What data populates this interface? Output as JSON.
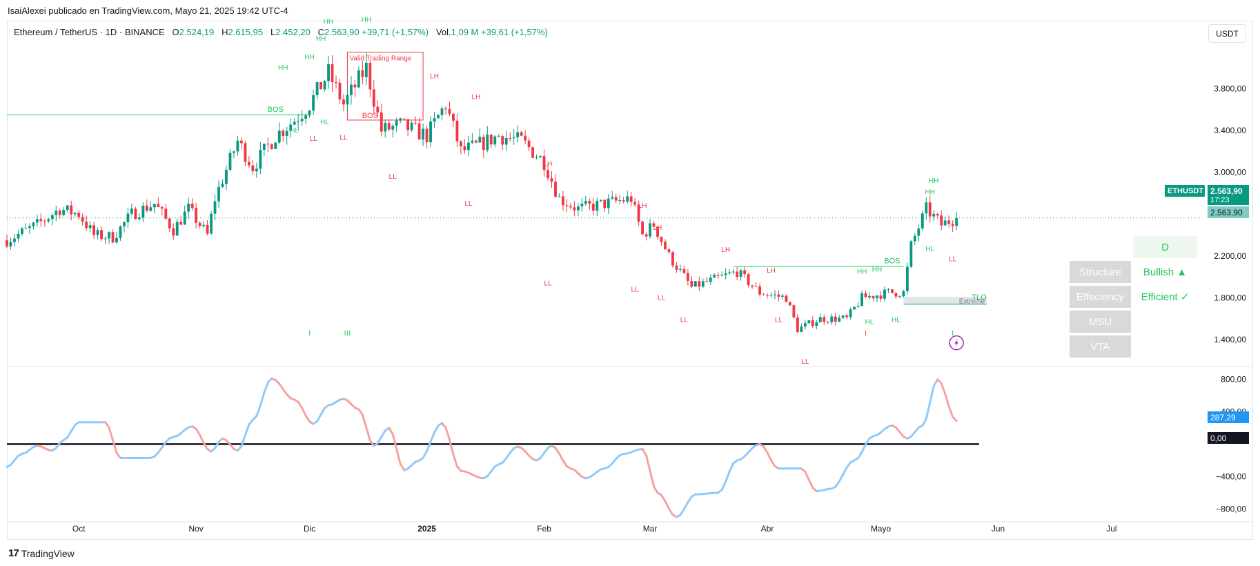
{
  "header": {
    "published": "IsaiAlexei publicado en TradingView.com, Mayo 21, 2025 19:42 UTC-4"
  },
  "legend": {
    "symbol": "Ethereum / TetherUS · 1D · BINANCE",
    "o_label": "O",
    "o": "2.524,19",
    "h_label": "H",
    "h": "2.615,95",
    "l_label": "L",
    "l": "2.452,20",
    "c_label": "C",
    "c": "2.563,90",
    "change": "+39,71 (+1,57%)",
    "vol_label": "Vol.",
    "vol": "1,09 M",
    "vol_change": "+39,61 (+1,57%)"
  },
  "currency": "USDT",
  "price_tags": {
    "symbol": "ETHUSDT",
    "price": "2.563,90",
    "countdown": "17:23",
    "price2": "2.563,90",
    "osc_value": "287,29",
    "osc_zero": "0,00"
  },
  "structure_table": {
    "timeframe": "D",
    "rows": [
      {
        "label": "Structure",
        "value": "Bullish ▲"
      },
      {
        "label": "Effeciency",
        "value": "Efficient ✓"
      },
      {
        "label": "MSU",
        "value": ""
      },
      {
        "label": "VTA",
        "value": ""
      }
    ]
  },
  "footer": {
    "brand": "TradingView",
    "mark": "17"
  },
  "colors": {
    "up": "#089981",
    "down": "#f23645",
    "osc_up": "#90caf9",
    "osc_down": "#f7a1a1",
    "label_green": "#22c55e"
  },
  "chart_data": [
    {
      "type": "candlestick",
      "title": "Ethereum / TetherUS · 1D · BINANCE",
      "x_ticks": [
        "Oct",
        "Nov",
        "Dic",
        "2025",
        "Feb",
        "Mar",
        "Abr",
        "Mayo",
        "Jun",
        "Jul"
      ],
      "y_ticks": [
        1400,
        1800,
        2200,
        2600,
        3000,
        3400,
        3800
      ],
      "y_tick_labels": [
        "1.400,00",
        "1.800,00",
        "2.200,00",
        "",
        "3.000,00",
        "3.400,00",
        "3.800,00"
      ],
      "ylim": [
        1150,
        4450
      ],
      "close_path": [
        [
          "2024-09-12",
          2350
        ],
        [
          "2024-09-20",
          2500
        ],
        [
          "2024-09-26",
          2650
        ],
        [
          "2024-10-01",
          2600
        ],
        [
          "2024-10-05",
          2400
        ],
        [
          "2024-10-10",
          2380
        ],
        [
          "2024-10-15",
          2600
        ],
        [
          "2024-10-21",
          2700
        ],
        [
          "2024-10-26",
          2450
        ],
        [
          "2024-10-30",
          2650
        ],
        [
          "2024-11-04",
          2400
        ],
        [
          "2024-11-06",
          2750
        ],
        [
          "2024-11-12",
          3300
        ],
        [
          "2024-11-16",
          3050
        ],
        [
          "2024-11-22",
          3350
        ],
        [
          "2024-11-27",
          3500
        ],
        [
          "2024-12-01",
          3650
        ],
        [
          "2024-12-06",
          3950
        ],
        [
          "2024-12-10",
          3650
        ],
        [
          "2024-12-16",
          4000
        ],
        [
          "2024-12-20",
          3400
        ],
        [
          "2024-12-25",
          3450
        ],
        [
          "2025-01-01",
          3350
        ],
        [
          "2025-01-06",
          3650
        ],
        [
          "2025-01-10",
          3200
        ],
        [
          "2025-01-14",
          3250
        ],
        [
          "2025-01-20",
          3350
        ],
        [
          "2025-01-26",
          3300
        ],
        [
          "2025-02-01",
          3100
        ],
        [
          "2025-02-05",
          2750
        ],
        [
          "2025-02-10",
          2650
        ],
        [
          "2025-02-17",
          2700
        ],
        [
          "2025-02-24",
          2750
        ],
        [
          "2025-02-27",
          2400
        ],
        [
          "2025-03-02",
          2500
        ],
        [
          "2025-03-06",
          2200
        ],
        [
          "2025-03-12",
          1900
        ],
        [
          "2025-03-20",
          2000
        ],
        [
          "2025-03-24",
          2050
        ],
        [
          "2025-03-30",
          1850
        ],
        [
          "2025-04-06",
          1800
        ],
        [
          "2025-04-09",
          1500
        ],
        [
          "2025-04-15",
          1600
        ],
        [
          "2025-04-22",
          1600
        ],
        [
          "2025-04-26",
          1800
        ],
        [
          "2025-05-03",
          1850
        ],
        [
          "2025-05-07",
          1850
        ],
        [
          "2025-05-09",
          2300
        ],
        [
          "2025-05-13",
          2650
        ],
        [
          "2025-05-17",
          2500
        ],
        [
          "2025-05-21",
          2563.9
        ]
      ],
      "horizontal_lines": [
        {
          "label": "BOS",
          "price": 3550,
          "from": "2024-09-12",
          "to": "2024-12-01"
        },
        {
          "label": "BOS",
          "price": 2100,
          "from": "2025-03-23",
          "to": "2025-05-07"
        },
        {
          "label": "last",
          "price": 2563.9,
          "from": "2024-09-12",
          "to": "2025-07-25",
          "style": "dotted"
        }
      ],
      "zones": [
        {
          "label": "Valid Trading Range",
          "from": "2024-12-11",
          "to": "2024-12-31",
          "top": 4150,
          "bottom": 3500
        },
        {
          "label": "Extreme",
          "from": "2025-05-07",
          "to": "2025-05-29",
          "top": 1810,
          "bottom": 1740
        }
      ],
      "annotations": [
        {
          "text": "HH",
          "date": "2024-11-24",
          "price": 3980,
          "color": "green"
        },
        {
          "text": "HH",
          "date": "2024-12-01",
          "price": 4080,
          "color": "green"
        },
        {
          "text": "HH",
          "date": "2024-12-04",
          "price": 4260,
          "color": "green"
        },
        {
          "text": "HH",
          "date": "2024-12-06",
          "price": 4420,
          "color": "green"
        },
        {
          "text": "HH",
          "date": "2024-12-16",
          "price": 4440,
          "color": "green"
        },
        {
          "text": "HL",
          "date": "2024-11-27",
          "price": 3380,
          "color": "green"
        },
        {
          "text": "HL",
          "date": "2024-12-05",
          "price": 3460,
          "color": "green"
        },
        {
          "text": "BOS",
          "date": "2024-11-22",
          "price": 3580,
          "color": "green"
        },
        {
          "text": "BOS",
          "date": "2024-12-17",
          "price": 3520,
          "color": "red"
        },
        {
          "text": "LL",
          "date": "2024-12-02",
          "price": 3300,
          "color": "red"
        },
        {
          "text": "LL",
          "date": "2024-12-10",
          "price": 3310,
          "color": "red"
        },
        {
          "text": "LL",
          "date": "2024-12-23",
          "price": 2940,
          "color": "red"
        },
        {
          "text": "LH",
          "date": "2025-01-03",
          "price": 3900,
          "color": "red"
        },
        {
          "text": "LH",
          "date": "2025-01-14",
          "price": 3700,
          "color": "red"
        },
        {
          "text": "LL",
          "date": "2025-01-12",
          "price": 2680,
          "color": "red"
        },
        {
          "text": "LH",
          "date": "2025-02-02",
          "price": 3060,
          "color": "red"
        },
        {
          "text": "LL",
          "date": "2025-02-02",
          "price": 1920,
          "color": "red"
        },
        {
          "text": "LH",
          "date": "2025-02-27",
          "price": 2660,
          "color": "red"
        },
        {
          "text": "LH",
          "date": "2025-03-03",
          "price": 2450,
          "color": "red"
        },
        {
          "text": "LL",
          "date": "2025-02-25",
          "price": 1860,
          "color": "red"
        },
        {
          "text": "LL",
          "date": "2025-03-04",
          "price": 1780,
          "color": "red"
        },
        {
          "text": "LL",
          "date": "2025-03-10",
          "price": 1570,
          "color": "red"
        },
        {
          "text": "LH",
          "date": "2025-03-21",
          "price": 2240,
          "color": "red"
        },
        {
          "text": "LH",
          "date": "2025-04-02",
          "price": 2040,
          "color": "red"
        },
        {
          "text": "LL",
          "date": "2025-04-04",
          "price": 1570,
          "color": "red"
        },
        {
          "text": "LL",
          "date": "2025-04-11",
          "price": 1170,
          "color": "red"
        },
        {
          "text": "HH",
          "date": "2025-04-26",
          "price": 2030,
          "color": "green"
        },
        {
          "text": "HH",
          "date": "2025-04-30",
          "price": 2050,
          "color": "green"
        },
        {
          "text": "HL",
          "date": "2025-04-28",
          "price": 1550,
          "color": "green"
        },
        {
          "text": "HL",
          "date": "2025-05-05",
          "price": 1570,
          "color": "green"
        },
        {
          "text": "BOS",
          "date": "2025-05-04",
          "price": 2130,
          "color": "green"
        },
        {
          "text": "HH",
          "date": "2025-05-14",
          "price": 2790,
          "color": "green"
        },
        {
          "text": "HH",
          "date": "2025-05-15",
          "price": 2900,
          "color": "green"
        },
        {
          "text": "HL",
          "date": "2025-05-14",
          "price": 2250,
          "color": "green"
        },
        {
          "text": "LL",
          "date": "2025-05-20",
          "price": 2150,
          "color": "red"
        },
        {
          "text": "TLQ",
          "date": "2025-05-27",
          "price": 1785,
          "color": "green"
        },
        {
          "text": "I",
          "date": "2024-12-01",
          "price": 1440,
          "color": "green"
        },
        {
          "text": "III",
          "date": "2024-12-11",
          "price": 1440,
          "color": "green"
        },
        {
          "text": "I",
          "date": "2025-04-27",
          "price": 1440,
          "color": "red"
        },
        {
          "text": "I",
          "date": "2025-05-20",
          "price": 1440,
          "color": "green"
        }
      ]
    },
    {
      "type": "line",
      "x_ticks": [
        "Oct",
        "Nov",
        "Dic",
        "2025",
        "Feb",
        "Mar",
        "Abr",
        "Mayo",
        "Jun",
        "Jul"
      ],
      "y_ticks": [
        -800,
        -400,
        400,
        800
      ],
      "y_tick_labels": [
        "−800,00",
        "−400,00",
        "400,00",
        "800,00"
      ],
      "ylim": [
        -950,
        950
      ],
      "zero_line": 0,
      "series": [
        {
          "values": [
            [
              "2024-09-12",
              -280
            ],
            [
              "2024-09-16",
              -120
            ],
            [
              "2024-09-20",
              -20
            ],
            [
              "2024-09-24",
              -80
            ],
            [
              "2024-09-27",
              50
            ],
            [
              "2024-10-01",
              270
            ],
            [
              "2024-10-08",
              270
            ],
            [
              "2024-10-12",
              -170
            ],
            [
              "2024-10-20",
              -170
            ],
            [
              "2024-10-26",
              90
            ],
            [
              "2024-10-31",
              220
            ],
            [
              "2024-11-05",
              -90
            ],
            [
              "2024-11-08",
              70
            ],
            [
              "2024-11-12",
              -80
            ],
            [
              "2024-11-16",
              300
            ],
            [
              "2024-11-21",
              810
            ],
            [
              "2024-11-27",
              550
            ],
            [
              "2024-12-02",
              250
            ],
            [
              "2024-12-06",
              480
            ],
            [
              "2024-12-10",
              560
            ],
            [
              "2024-12-14",
              430
            ],
            [
              "2024-12-18",
              -20
            ],
            [
              "2024-12-22",
              200
            ],
            [
              "2024-12-26",
              -320
            ],
            [
              "2024-12-30",
              -200
            ],
            [
              "2025-01-05",
              260
            ],
            [
              "2025-01-10",
              -330
            ],
            [
              "2025-01-16",
              -420
            ],
            [
              "2025-01-20",
              -250
            ],
            [
              "2025-01-25",
              -30
            ],
            [
              "2025-01-30",
              -200
            ],
            [
              "2025-02-03",
              -20
            ],
            [
              "2025-02-08",
              -300
            ],
            [
              "2025-02-12",
              -420
            ],
            [
              "2025-02-17",
              -300
            ],
            [
              "2025-02-22",
              -120
            ],
            [
              "2025-02-27",
              -60
            ],
            [
              "2025-03-03",
              -600
            ],
            [
              "2025-03-08",
              -900
            ],
            [
              "2025-03-13",
              -620
            ],
            [
              "2025-03-19",
              -600
            ],
            [
              "2025-03-24",
              -200
            ],
            [
              "2025-03-30",
              0
            ],
            [
              "2025-04-04",
              -300
            ],
            [
              "2025-04-10",
              -300
            ],
            [
              "2025-04-14",
              -580
            ],
            [
              "2025-04-18",
              -550
            ],
            [
              "2025-04-24",
              -200
            ],
            [
              "2025-04-29",
              100
            ],
            [
              "2025-05-04",
              230
            ],
            [
              "2025-05-08",
              70
            ],
            [
              "2025-05-12",
              230
            ],
            [
              "2025-05-16",
              800
            ],
            [
              "2025-05-21",
              287.29
            ]
          ]
        }
      ]
    }
  ]
}
